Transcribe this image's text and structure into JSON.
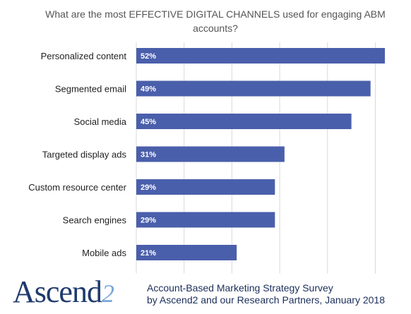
{
  "chart_data": {
    "type": "bar",
    "orientation": "horizontal",
    "title": "What are the most EFFECTIVE DIGITAL CHANNELS used for engaging ABM accounts?",
    "categories": [
      "Personalized content",
      "Segmented email",
      "Social media",
      "Targeted display ads",
      "Custom resource center",
      "Search engines",
      "Mobile ads"
    ],
    "values": [
      52,
      49,
      45,
      31,
      29,
      29,
      21
    ],
    "value_labels": [
      "52%",
      "49%",
      "45%",
      "31%",
      "29%",
      "29%",
      "21%"
    ],
    "xlim": [
      0,
      52
    ],
    "grid": true,
    "bar_color": "#4a5fab"
  },
  "branding": {
    "logo_text": "Ascend",
    "logo_mark": "2",
    "footnote_line1": "Account-Based Marketing Strategy Survey",
    "footnote_line2": "by Ascend2 and our Research Partners, January 2018"
  }
}
